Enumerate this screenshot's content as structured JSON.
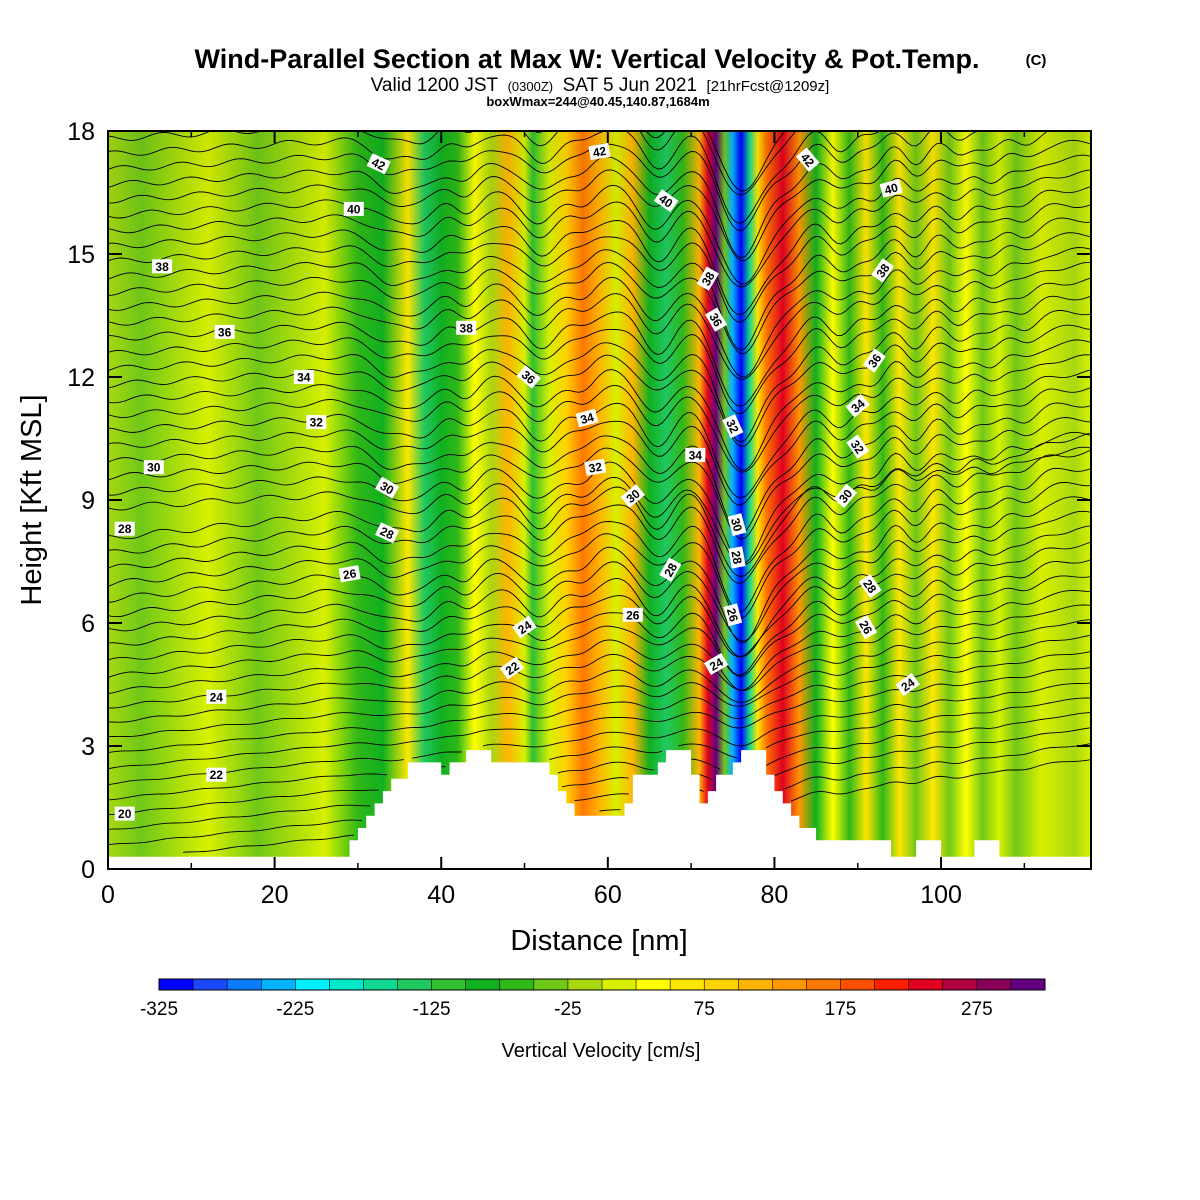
{
  "title": {
    "main": "Wind-Parallel Section at Max W: Vertical Velocity & Pot.Temp.",
    "copyright": "(C)",
    "valid_prefix": "Valid 1200 JST",
    "utc": "(0300Z)",
    "valid_date": "SAT 5 Jun 2021",
    "forecast": "[21hrFcst@1209z]",
    "subtitle": "boxWmax=244@40.45,140.87,1684m"
  },
  "chart_data": {
    "type": "heatmap",
    "xlabel": "Distance [nm]",
    "ylabel": "Height [Kft MSL]",
    "xlim": [
      0,
      118
    ],
    "ylim": [
      0,
      18
    ],
    "xticks": [
      "0",
      "20",
      "40",
      "60",
      "80",
      "100"
    ],
    "yticks": [
      "0",
      "3",
      "6",
      "9",
      "12",
      "15",
      "18"
    ],
    "colorbar": {
      "title": "Vertical Velocity [cm/s]",
      "min": -325,
      "max": 325,
      "step": 25,
      "labels": [
        "-325",
        "-225",
        "-125",
        "-25",
        "75",
        "175",
        "275"
      ],
      "colors": [
        "#0000ff",
        "#1a48ff",
        "#0a7dff",
        "#00b2ff",
        "#00f0ff",
        "#00e8c8",
        "#10d890",
        "#20c860",
        "#30c030",
        "#10b020",
        "#30b818",
        "#70c818",
        "#a8d810",
        "#d8f000",
        "#ffff00",
        "#ffe600",
        "#ffd200",
        "#ffb400",
        "#ff9600",
        "#ff7800",
        "#ff5000",
        "#ff1e00",
        "#e00020",
        "#b00040",
        "#880058",
        "#600080"
      ]
    },
    "velocity_bands": [
      {
        "x": 0,
        "w": -10
      },
      {
        "x": 4,
        "w": -40
      },
      {
        "x": 12,
        "w": 10
      },
      {
        "x": 18,
        "w": -30
      },
      {
        "x": 26,
        "w": 0
      },
      {
        "x": 30,
        "w": -55
      },
      {
        "x": 33,
        "w": -90
      },
      {
        "x": 36,
        "w": 55
      },
      {
        "x": 38,
        "w": -140
      },
      {
        "x": 40,
        "w": -100
      },
      {
        "x": 42,
        "w": -60
      },
      {
        "x": 44,
        "w": 40
      },
      {
        "x": 46,
        "w": -20
      },
      {
        "x": 48,
        "w": 120
      },
      {
        "x": 50,
        "w": 0
      },
      {
        "x": 51,
        "w": -110
      },
      {
        "x": 53,
        "w": 10
      },
      {
        "x": 55,
        "w": 90
      },
      {
        "x": 57,
        "w": 150
      },
      {
        "x": 59,
        "w": 110
      },
      {
        "x": 61,
        "w": 20
      },
      {
        "x": 63,
        "w": 100
      },
      {
        "x": 65,
        "w": -90
      },
      {
        "x": 67,
        "w": -140
      },
      {
        "x": 69,
        "w": -60
      },
      {
        "x": 71,
        "w": 100
      },
      {
        "x": 72,
        "w": 230
      },
      {
        "x": 73,
        "w": 300
      },
      {
        "x": 74,
        "w": -40
      },
      {
        "x": 75,
        "w": -240
      },
      {
        "x": 76,
        "w": -320
      },
      {
        "x": 77,
        "w": -160
      },
      {
        "x": 78,
        "w": 60
      },
      {
        "x": 79,
        "w": 160
      },
      {
        "x": 81,
        "w": 240
      },
      {
        "x": 83,
        "w": 130
      },
      {
        "x": 85,
        "w": -80
      },
      {
        "x": 87,
        "w": 40
      },
      {
        "x": 89,
        "w": -60
      },
      {
        "x": 91,
        "w": 50
      },
      {
        "x": 93,
        "w": -60
      },
      {
        "x": 95,
        "w": 60
      },
      {
        "x": 97,
        "w": -50
      },
      {
        "x": 99,
        "w": 60
      },
      {
        "x": 101,
        "w": -40
      },
      {
        "x": 103,
        "w": 40
      },
      {
        "x": 105,
        "w": -50
      },
      {
        "x": 107,
        "w": 20
      },
      {
        "x": 109,
        "w": -40
      },
      {
        "x": 112,
        "w": 10
      },
      {
        "x": 116,
        "w": -10
      },
      {
        "x": 118,
        "w": 0
      }
    ],
    "terrain": [
      [
        0,
        0.3
      ],
      [
        29,
        0.3
      ],
      [
        29,
        0.7
      ],
      [
        30,
        0.7
      ],
      [
        30,
        1.0
      ],
      [
        31,
        1.0
      ],
      [
        31,
        1.3
      ],
      [
        32,
        1.3
      ],
      [
        32,
        1.6
      ],
      [
        33,
        1.6
      ],
      [
        33,
        1.9
      ],
      [
        34,
        1.9
      ],
      [
        34,
        2.2
      ],
      [
        36,
        2.2
      ],
      [
        36,
        2.6
      ],
      [
        40,
        2.6
      ],
      [
        40,
        2.3
      ],
      [
        41,
        2.3
      ],
      [
        41,
        2.6
      ],
      [
        43,
        2.6
      ],
      [
        43,
        2.9
      ],
      [
        46,
        2.9
      ],
      [
        46,
        2.6
      ],
      [
        53,
        2.6
      ],
      [
        53,
        2.3
      ],
      [
        54,
        2.3
      ],
      [
        54,
        1.9
      ],
      [
        55,
        1.9
      ],
      [
        55,
        1.6
      ],
      [
        56,
        1.6
      ],
      [
        56,
        1.3
      ],
      [
        62,
        1.3
      ],
      [
        62,
        1.6
      ],
      [
        63,
        1.6
      ],
      [
        63,
        2.3
      ],
      [
        66,
        2.3
      ],
      [
        66,
        2.6
      ],
      [
        67,
        2.6
      ],
      [
        67,
        2.9
      ],
      [
        70,
        2.9
      ],
      [
        70,
        2.3
      ],
      [
        71,
        2.3
      ],
      [
        71,
        1.6
      ],
      [
        72,
        1.6
      ],
      [
        72,
        1.9
      ],
      [
        73,
        1.9
      ],
      [
        73,
        2.3
      ],
      [
        75,
        2.3
      ],
      [
        75,
        2.6
      ],
      [
        76,
        2.6
      ],
      [
        76,
        2.9
      ],
      [
        79,
        2.9
      ],
      [
        79,
        2.3
      ],
      [
        80,
        2.3
      ],
      [
        80,
        1.9
      ],
      [
        81,
        1.9
      ],
      [
        81,
        1.6
      ],
      [
        82,
        1.6
      ],
      [
        82,
        1.3
      ],
      [
        83,
        1.3
      ],
      [
        83,
        1.0
      ],
      [
        85,
        1.0
      ],
      [
        85,
        0.7
      ],
      [
        94,
        0.7
      ],
      [
        94,
        0.3
      ],
      [
        97,
        0.3
      ],
      [
        97,
        0.7
      ],
      [
        100,
        0.7
      ],
      [
        100,
        0.3
      ],
      [
        104,
        0.3
      ],
      [
        104,
        0.7
      ],
      [
        107,
        0.7
      ],
      [
        107,
        0.3
      ],
      [
        118,
        0.3
      ]
    ],
    "contour_levels": [
      20,
      22,
      24,
      26,
      28,
      30,
      32,
      34,
      36,
      38,
      40,
      42
    ],
    "contour_labels": [
      {
        "text": "20",
        "x": 2,
        "y": 1.35,
        "rot": 0
      },
      {
        "text": "22",
        "x": 13,
        "y": 2.3,
        "rot": 0
      },
      {
        "text": "24",
        "x": 13,
        "y": 4.2,
        "rot": 0
      },
      {
        "text": "26",
        "x": 29,
        "y": 7.2,
        "rot": -10
      },
      {
        "text": "28",
        "x": 2,
        "y": 8.3,
        "rot": 0
      },
      {
        "text": "28",
        "x": 33.5,
        "y": 8.2,
        "rot": 25
      },
      {
        "text": "30",
        "x": 5.5,
        "y": 9.8,
        "rot": 0
      },
      {
        "text": "30",
        "x": 33.5,
        "y": 9.3,
        "rot": 30
      },
      {
        "text": "32",
        "x": 25,
        "y": 10.9,
        "rot": 0
      },
      {
        "text": "34",
        "x": 23.5,
        "y": 12.0,
        "rot": 0
      },
      {
        "text": "36",
        "x": 14,
        "y": 13.1,
        "rot": 0
      },
      {
        "text": "38",
        "x": 6.5,
        "y": 14.7,
        "rot": 0
      },
      {
        "text": "38",
        "x": 43,
        "y": 13.2,
        "rot": 0
      },
      {
        "text": "40",
        "x": 29.5,
        "y": 16.1,
        "rot": 0
      },
      {
        "text": "42",
        "x": 32.5,
        "y": 17.2,
        "rot": 25
      },
      {
        "text": "22",
        "x": 48.5,
        "y": 4.9,
        "rot": -35
      },
      {
        "text": "24",
        "x": 50,
        "y": 5.9,
        "rot": -35
      },
      {
        "text": "26",
        "x": 63,
        "y": 6.2,
        "rot": 0
      },
      {
        "text": "28",
        "x": 67.5,
        "y": 7.3,
        "rot": -60
      },
      {
        "text": "30",
        "x": 63,
        "y": 9.1,
        "rot": -40
      },
      {
        "text": "32",
        "x": 58.5,
        "y": 9.8,
        "rot": -10
      },
      {
        "text": "34",
        "x": 57.5,
        "y": 11.0,
        "rot": -15
      },
      {
        "text": "36",
        "x": 50.5,
        "y": 12.0,
        "rot": 40
      },
      {
        "text": "34",
        "x": 70.5,
        "y": 10.1,
        "rot": 0
      },
      {
        "text": "38",
        "x": 72,
        "y": 14.4,
        "rot": -60
      },
      {
        "text": "36",
        "x": 73,
        "y": 13.4,
        "rot": 60
      },
      {
        "text": "32",
        "x": 75,
        "y": 10.8,
        "rot": 65
      },
      {
        "text": "30",
        "x": 75.5,
        "y": 8.4,
        "rot": 75
      },
      {
        "text": "28",
        "x": 75.5,
        "y": 7.6,
        "rot": 80
      },
      {
        "text": "26",
        "x": 75,
        "y": 6.2,
        "rot": 75
      },
      {
        "text": "24",
        "x": 73,
        "y": 5.0,
        "rot": -30
      },
      {
        "text": "40",
        "x": 67,
        "y": 16.3,
        "rot": 35
      },
      {
        "text": "42",
        "x": 59,
        "y": 17.5,
        "rot": -10
      },
      {
        "text": "42",
        "x": 84,
        "y": 17.3,
        "rot": 50
      },
      {
        "text": "40",
        "x": 94,
        "y": 16.6,
        "rot": -15
      },
      {
        "text": "38",
        "x": 93,
        "y": 14.6,
        "rot": -55
      },
      {
        "text": "36",
        "x": 92,
        "y": 12.4,
        "rot": -55
      },
      {
        "text": "34",
        "x": 90,
        "y": 11.3,
        "rot": -40
      },
      {
        "text": "32",
        "x": 90,
        "y": 10.3,
        "rot": 55
      },
      {
        "text": "30",
        "x": 88.5,
        "y": 9.1,
        "rot": -50
      },
      {
        "text": "28",
        "x": 91.5,
        "y": 6.9,
        "rot": 55
      },
      {
        "text": "26",
        "x": 91,
        "y": 5.9,
        "rot": 60
      },
      {
        "text": "24",
        "x": 96,
        "y": 4.5,
        "rot": -35
      }
    ]
  }
}
